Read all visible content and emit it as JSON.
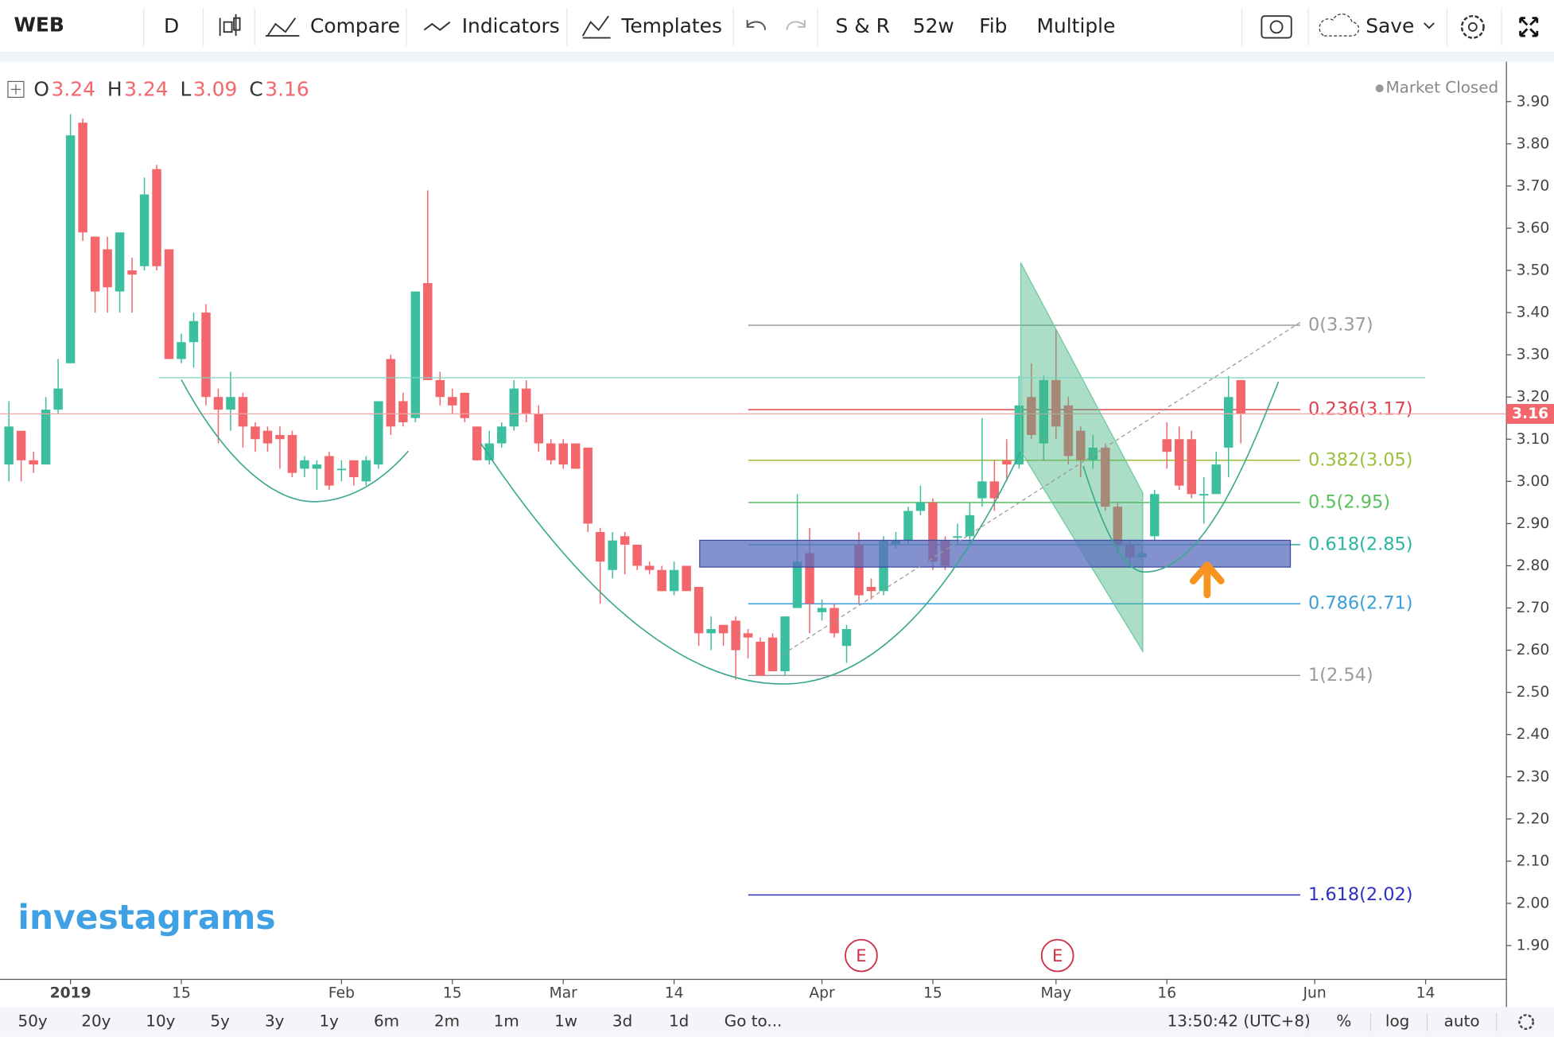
{
  "toolbar": {
    "symbol": "WEB",
    "interval": "D",
    "buttons": [
      "Compare",
      "Indicators",
      "Templates",
      "S & R",
      "52w",
      "Fib",
      "Multiple"
    ],
    "save": "Save"
  },
  "ohlc_header": [
    {
      "label": "O",
      "value": 3.24
    },
    {
      "label": "H",
      "value": 3.24
    },
    {
      "label": "L",
      "value": 3.09
    },
    {
      "label": "C",
      "value": 3.16
    }
  ],
  "status": "Market Closed",
  "watermark": "investagrams",
  "events": [
    "E",
    "E"
  ],
  "chart_data": {
    "type": "candlestick",
    "up_color": "#3cbf9f",
    "down_color": "#f2666c",
    "ohlc": [
      [
        3.04,
        3.19,
        3.0,
        3.13
      ],
      [
        3.12,
        3.12,
        3.0,
        3.05
      ],
      [
        3.05,
        3.07,
        3.02,
        3.04
      ],
      [
        3.04,
        3.2,
        3.04,
        3.17
      ],
      [
        3.17,
        3.29,
        3.16,
        3.22
      ],
      [
        3.28,
        3.87,
        3.28,
        3.82
      ],
      [
        3.85,
        3.86,
        3.57,
        3.59
      ],
      [
        3.58,
        3.58,
        3.4,
        3.45
      ],
      [
        3.55,
        3.58,
        3.4,
        3.46
      ],
      [
        3.45,
        3.59,
        3.4,
        3.59
      ],
      [
        3.5,
        3.53,
        3.4,
        3.49
      ],
      [
        3.51,
        3.72,
        3.5,
        3.68
      ],
      [
        3.74,
        3.75,
        3.5,
        3.51
      ],
      [
        3.55,
        3.55,
        3.29,
        3.29
      ],
      [
        3.29,
        3.35,
        3.28,
        3.33
      ],
      [
        3.33,
        3.4,
        3.27,
        3.38
      ],
      [
        3.4,
        3.42,
        3.18,
        3.2
      ],
      [
        3.2,
        3.22,
        3.09,
        3.17
      ],
      [
        3.17,
        3.26,
        3.12,
        3.2
      ],
      [
        3.2,
        3.21,
        3.08,
        3.13
      ],
      [
        3.13,
        3.14,
        3.07,
        3.1
      ],
      [
        3.12,
        3.13,
        3.07,
        3.09
      ],
      [
        3.11,
        3.13,
        3.03,
        3.1
      ],
      [
        3.11,
        3.12,
        3.01,
        3.02
      ],
      [
        3.03,
        3.06,
        3.01,
        3.05
      ],
      [
        3.03,
        3.05,
        2.98,
        3.04
      ],
      [
        3.06,
        3.07,
        2.98,
        2.99
      ],
      [
        3.03,
        3.05,
        3.0,
        3.03
      ],
      [
        3.05,
        3.05,
        2.99,
        3.01
      ],
      [
        3.0,
        3.06,
        2.99,
        3.05
      ],
      [
        3.04,
        3.19,
        3.03,
        3.19
      ],
      [
        3.29,
        3.3,
        3.11,
        3.13
      ],
      [
        3.19,
        3.21,
        3.13,
        3.14
      ],
      [
        3.15,
        3.45,
        3.14,
        3.45
      ],
      [
        3.47,
        3.69,
        3.24,
        3.24
      ],
      [
        3.24,
        3.26,
        3.18,
        3.2
      ],
      [
        3.2,
        3.22,
        3.16,
        3.18
      ],
      [
        3.21,
        3.21,
        3.14,
        3.15
      ],
      [
        3.13,
        3.13,
        3.05,
        3.05
      ],
      [
        3.05,
        3.12,
        3.04,
        3.09
      ],
      [
        3.09,
        3.14,
        3.08,
        3.13
      ],
      [
        3.13,
        3.24,
        3.12,
        3.22
      ],
      [
        3.22,
        3.24,
        3.14,
        3.16
      ],
      [
        3.16,
        3.18,
        3.07,
        3.09
      ],
      [
        3.09,
        3.1,
        3.04,
        3.05
      ],
      [
        3.09,
        3.1,
        3.03,
        3.04
      ],
      [
        3.09,
        3.09,
        3.03,
        3.03
      ],
      [
        3.08,
        3.08,
        2.88,
        2.9
      ],
      [
        2.88,
        2.89,
        2.71,
        2.81
      ],
      [
        2.79,
        2.88,
        2.77,
        2.86
      ],
      [
        2.87,
        2.88,
        2.78,
        2.85
      ],
      [
        2.85,
        2.85,
        2.79,
        2.8
      ],
      [
        2.8,
        2.81,
        2.78,
        2.79
      ],
      [
        2.79,
        2.8,
        2.74,
        2.74
      ],
      [
        2.74,
        2.81,
        2.73,
        2.79
      ],
      [
        2.8,
        2.8,
        2.74,
        2.74
      ],
      [
        2.75,
        2.75,
        2.61,
        2.64
      ],
      [
        2.64,
        2.68,
        2.6,
        2.65
      ],
      [
        2.66,
        2.66,
        2.61,
        2.64
      ],
      [
        2.67,
        2.68,
        2.53,
        2.6
      ],
      [
        2.64,
        2.65,
        2.58,
        2.63
      ],
      [
        2.62,
        2.63,
        2.54,
        2.54
      ],
      [
        2.63,
        2.64,
        2.55,
        2.55
      ],
      [
        2.55,
        2.68,
        2.54,
        2.68
      ],
      [
        2.7,
        2.97,
        2.7,
        2.81
      ],
      [
        2.83,
        2.89,
        2.64,
        2.71
      ],
      [
        2.69,
        2.72,
        2.67,
        2.7
      ],
      [
        2.7,
        2.71,
        2.63,
        2.64
      ],
      [
        2.61,
        2.66,
        2.57,
        2.65
      ],
      [
        2.85,
        2.88,
        2.71,
        2.73
      ],
      [
        2.75,
        2.77,
        2.72,
        2.74
      ],
      [
        2.74,
        2.87,
        2.73,
        2.86
      ],
      [
        2.85,
        2.88,
        2.84,
        2.86
      ],
      [
        2.86,
        2.94,
        2.85,
        2.93
      ],
      [
        2.93,
        2.99,
        2.92,
        2.95
      ],
      [
        2.95,
        2.96,
        2.79,
        2.81
      ],
      [
        2.86,
        2.87,
        2.79,
        2.8
      ],
      [
        2.87,
        2.9,
        2.85,
        2.87
      ],
      [
        2.87,
        2.95,
        2.85,
        2.92
      ],
      [
        2.96,
        3.15,
        2.94,
        3.0
      ],
      [
        3.0,
        3.05,
        2.93,
        2.96
      ],
      [
        3.05,
        3.1,
        3.0,
        3.04
      ],
      [
        3.04,
        3.25,
        3.03,
        3.18
      ],
      [
        3.2,
        3.28,
        3.1,
        3.11
      ],
      [
        3.09,
        3.25,
        3.05,
        3.24
      ],
      [
        3.24,
        3.36,
        3.1,
        3.13
      ],
      [
        3.18,
        3.2,
        3.04,
        3.06
      ],
      [
        3.12,
        3.13,
        3.01,
        3.05
      ],
      [
        3.05,
        3.11,
        3.03,
        3.08
      ],
      [
        3.08,
        3.09,
        2.93,
        2.94
      ],
      [
        2.94,
        2.95,
        2.83,
        2.85
      ],
      [
        2.85,
        2.86,
        2.8,
        2.82
      ],
      [
        2.82,
        2.85,
        2.81,
        2.83
      ],
      [
        2.87,
        2.98,
        2.86,
        2.97
      ],
      [
        3.1,
        3.14,
        3.03,
        3.07
      ],
      [
        3.1,
        3.13,
        2.98,
        2.99
      ],
      [
        3.1,
        3.12,
        2.96,
        2.97
      ],
      [
        2.97,
        3.01,
        2.9,
        2.97
      ],
      [
        2.97,
        3.07,
        2.97,
        3.04
      ],
      [
        3.08,
        3.25,
        3.01,
        3.2
      ],
      [
        3.24,
        3.24,
        3.09,
        3.16
      ]
    ],
    "xlim": [
      -0.72,
      121.56
    ],
    "xticks": [
      {
        "value": 5,
        "label": "2019"
      },
      {
        "value": 14,
        "label": "15"
      },
      {
        "value": 27,
        "label": "Feb"
      },
      {
        "value": 36,
        "label": "15"
      },
      {
        "value": 45,
        "label": "Mar"
      },
      {
        "value": 54,
        "label": "14"
      },
      {
        "value": 66,
        "label": "Apr"
      },
      {
        "value": 75,
        "label": "15"
      },
      {
        "value": 85,
        "label": "May"
      },
      {
        "value": 94,
        "label": "16"
      },
      {
        "value": 106,
        "label": "Jun"
      },
      {
        "value": 115,
        "label": "14"
      }
    ],
    "ylim": [
      1.82,
      3.99
    ],
    "yticks": [
      {
        "value": 3.9,
        "label": "3.90"
      },
      {
        "value": 3.8,
        "label": "3.80"
      },
      {
        "value": 3.7,
        "label": "3.70"
      },
      {
        "value": 3.6,
        "label": "3.60"
      },
      {
        "value": 3.5,
        "label": "3.50"
      },
      {
        "value": 3.4,
        "label": "3.40"
      },
      {
        "value": 3.3,
        "label": "3.30"
      },
      {
        "value": 3.2,
        "label": "3.20"
      },
      {
        "value": 3.1,
        "label": "3.10"
      },
      {
        "value": 3.0,
        "label": "3.00"
      },
      {
        "value": 2.9,
        "label": "2.90"
      },
      {
        "value": 2.8,
        "label": "2.80"
      },
      {
        "value": 2.7,
        "label": "2.70"
      },
      {
        "value": 2.6,
        "label": "2.60"
      },
      {
        "value": 2.5,
        "label": "2.50"
      },
      {
        "value": 2.4,
        "label": "2.40"
      },
      {
        "value": 2.3,
        "label": "2.30"
      },
      {
        "value": 2.2,
        "label": "2.20"
      },
      {
        "value": 2.1,
        "label": "2.10"
      },
      {
        "value": 2.0,
        "label": "2.00"
      },
      {
        "value": 1.9,
        "label": "1.90"
      }
    ],
    "fib_levels": [
      {
        "label": "0(3.37)",
        "value": 3.37,
        "color": "#9a9a9a"
      },
      {
        "label": "0.236(3.17)",
        "value": 3.17,
        "color": "#e0404e"
      },
      {
        "label": "0.382(3.05)",
        "value": 3.05,
        "color": "#9cbf3a"
      },
      {
        "label": "0.5(2.95)",
        "value": 2.95,
        "color": "#58c05a"
      },
      {
        "label": "0.618(2.85)",
        "value": 2.85,
        "color": "#2bb5a0"
      },
      {
        "label": "0.786(2.71)",
        "value": 2.71,
        "color": "#3a9ed8"
      },
      {
        "label": "1(2.54)",
        "value": 2.54,
        "color": "#9a9a9a"
      },
      {
        "label": "1.618(2.02)",
        "value": 2.02,
        "color": "#3030c0"
      }
    ]
  },
  "footer": {
    "ranges": [
      "50y",
      "20y",
      "10y",
      "5y",
      "3y",
      "1y",
      "6m",
      "2m",
      "1m",
      "1w",
      "3d",
      "1d"
    ],
    "goto": "Go to...",
    "time": "13:50:42 (UTC+8)",
    "options": [
      "%",
      "log",
      "auto"
    ]
  }
}
